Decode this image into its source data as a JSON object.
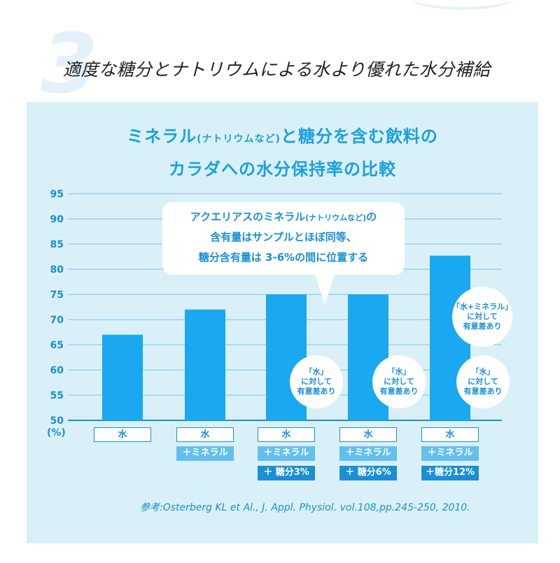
{
  "section_number": "3",
  "headline": "適度な糖分とナトリウムによる水より優れた水分補給",
  "chart_title": {
    "line1_main_a": "ミネラル",
    "line1_small": "(ナトリウムなど)",
    "line1_main_b": "と糖分を含む飲料の",
    "line2": "カラダへの水分保持率の比較"
  },
  "bubble": {
    "line1_main": "アクエリアスのミネラル",
    "line1_small": "(ナトリウムなど)",
    "line1_end": "の",
    "line2": "含有量はサンプルとほぼ同等、",
    "line3": "糖分含有量は 3-6%の間に位置する"
  },
  "badges": {
    "vs_water_1": "「水」",
    "vs_water_2": "に対して",
    "vs_water_3": "有意差あり",
    "vs_mineral_1": "「水+ミネラル」",
    "vs_mineral_2": "に対して",
    "vs_mineral_3": "有意差あり"
  },
  "x_labels": {
    "water": "水",
    "mineral": "＋ミネラル",
    "sugar3": "＋ 糖分3%",
    "sugar6": "＋ 糖分6%",
    "sugar12": "＋糖分12%"
  },
  "unit_label": "(%)",
  "reference": "参考:Osterberg KL et Al., J. Appl. Physiol. vol.108,pp.245-250, 2010.",
  "colors": {
    "bar": "#1aa8f0",
    "panel": "#daf0f8",
    "accent": "#1a8fd6"
  },
  "chart_data": {
    "type": "bar",
    "title": "ミネラル(ナトリウムなど)と糖分を含む飲料のカラダへの水分保持率の比較",
    "categories": [
      "水",
      "水＋ミネラル",
      "水＋ミネラル＋糖分3%",
      "水＋ミネラル＋糖分6%",
      "水＋ミネラル＋糖分12%"
    ],
    "values": [
      67,
      72,
      75,
      75,
      82.7
    ],
    "ylabel": "(%)",
    "ylim": [
      50,
      95
    ],
    "yticks": [
      50,
      55,
      60,
      65,
      70,
      75,
      80,
      85,
      90,
      95
    ],
    "grid": true
  }
}
